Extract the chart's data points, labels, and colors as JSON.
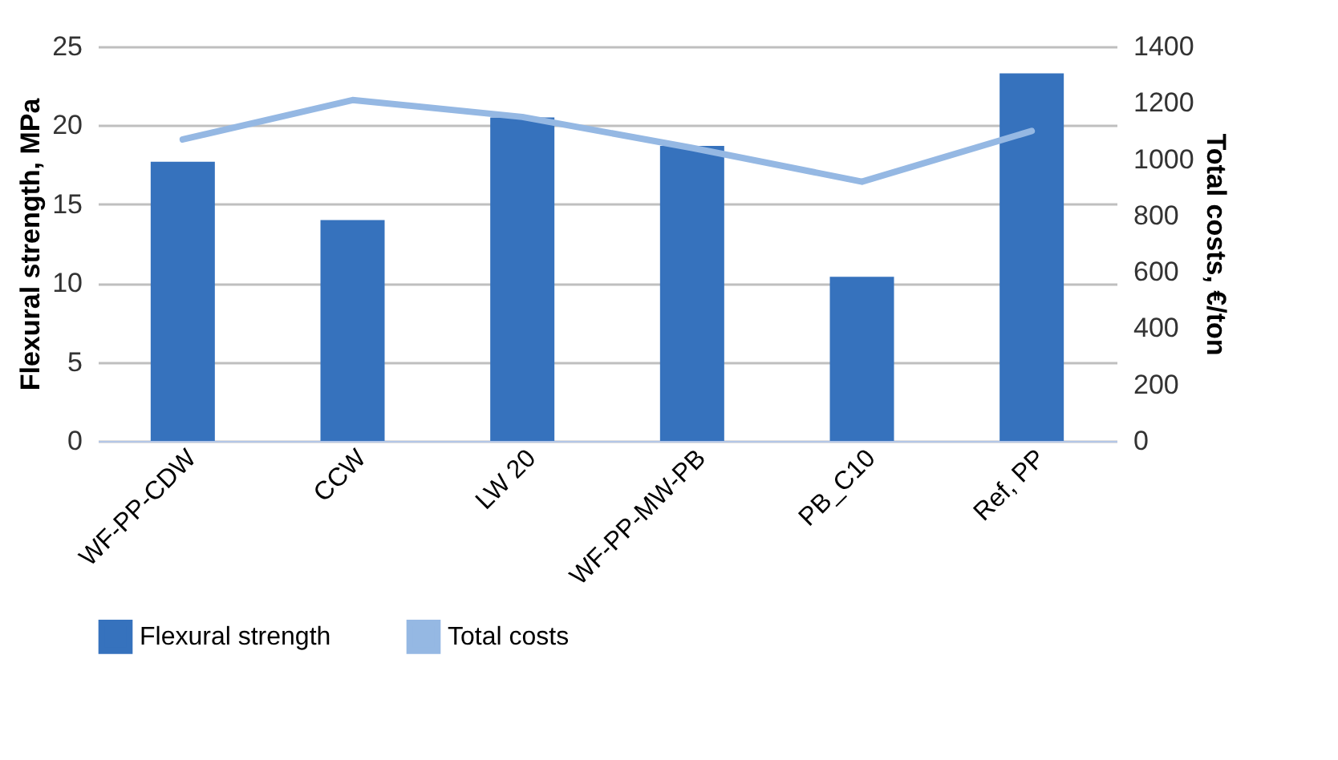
{
  "chart_data": {
    "type": "bar",
    "categories": [
      "WF-PP-CDW",
      "CCW",
      "LW 20",
      "WF-PP-MW-PB",
      "PB_C10",
      "Ref, PP"
    ],
    "ylabel": "Flexural strength, MPa",
    "y2label": "Total costs, €/ton",
    "ylim": [
      0,
      25
    ],
    "yticks": [
      0,
      5,
      10,
      15,
      20,
      25
    ],
    "y2lim": [
      0,
      1400
    ],
    "y2ticks": [
      0,
      200,
      400,
      600,
      800,
      1000,
      1200,
      1400
    ],
    "grid": "y",
    "legend": "bottom",
    "series": [
      {
        "name": "Flexural strength",
        "color": "#3672bd",
        "values": [
          17.7,
          14.0,
          20.5,
          18.7,
          10.4,
          23.3
        ]
      },
      {
        "name": "Total costs",
        "type": "line",
        "axis": "y2",
        "color": "#95b8e3",
        "values": [
          1070,
          1210,
          1150,
          1040,
          920,
          1100
        ]
      }
    ]
  }
}
